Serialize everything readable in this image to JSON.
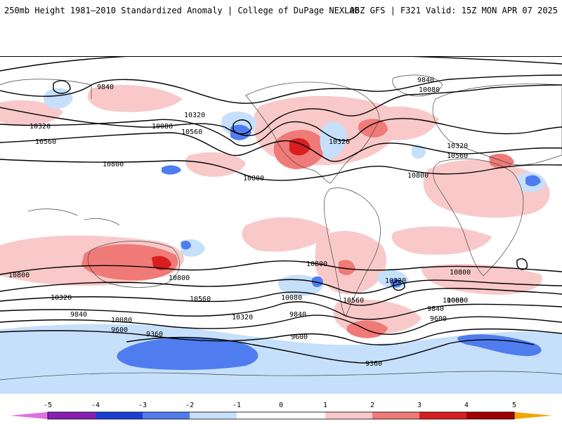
{
  "header": {
    "title_left": "250mb Height 1981–2010 Standardized Anomaly | College of DuPage NEXLAB",
    "title_right": "06Z GFS | F321 Valid: 15Z MON APR 07 2025"
  },
  "colors": {
    "m5": "#e070e0",
    "m4": "#8a1fb8",
    "m3": "#1a3fd6",
    "m2": "#4f7df0",
    "m1": "#c6e0fb",
    "zero": "#ffffff",
    "p1": "#f9c9c9",
    "p2": "#f07a78",
    "p3": "#d81e1e",
    "p4": "#a00000",
    "p5": "#f2a500",
    "contour": "#000000",
    "coast": "#444444"
  },
  "colorbar": {
    "ticks": [
      "-5",
      "-4",
      "-3",
      "-2",
      "-1",
      "0",
      "1",
      "2",
      "3",
      "4",
      "5"
    ]
  },
  "contours": {
    "labels": [
      "9600",
      "9600",
      "9840",
      "9840",
      "10080",
      "10080",
      "10320",
      "10320",
      "10560",
      "10560",
      "10800",
      "10800",
      "10800",
      "10320",
      "10560",
      "10800",
      "10320",
      "10560",
      "10800",
      "10800",
      "10320",
      "9840",
      "10080",
      "9600",
      "9360",
      "10080",
      "9840",
      "9600",
      "10080",
      "10560",
      "10320",
      "10080",
      "9840",
      "9600",
      "10320",
      "10800",
      "9360"
    ]
  }
}
